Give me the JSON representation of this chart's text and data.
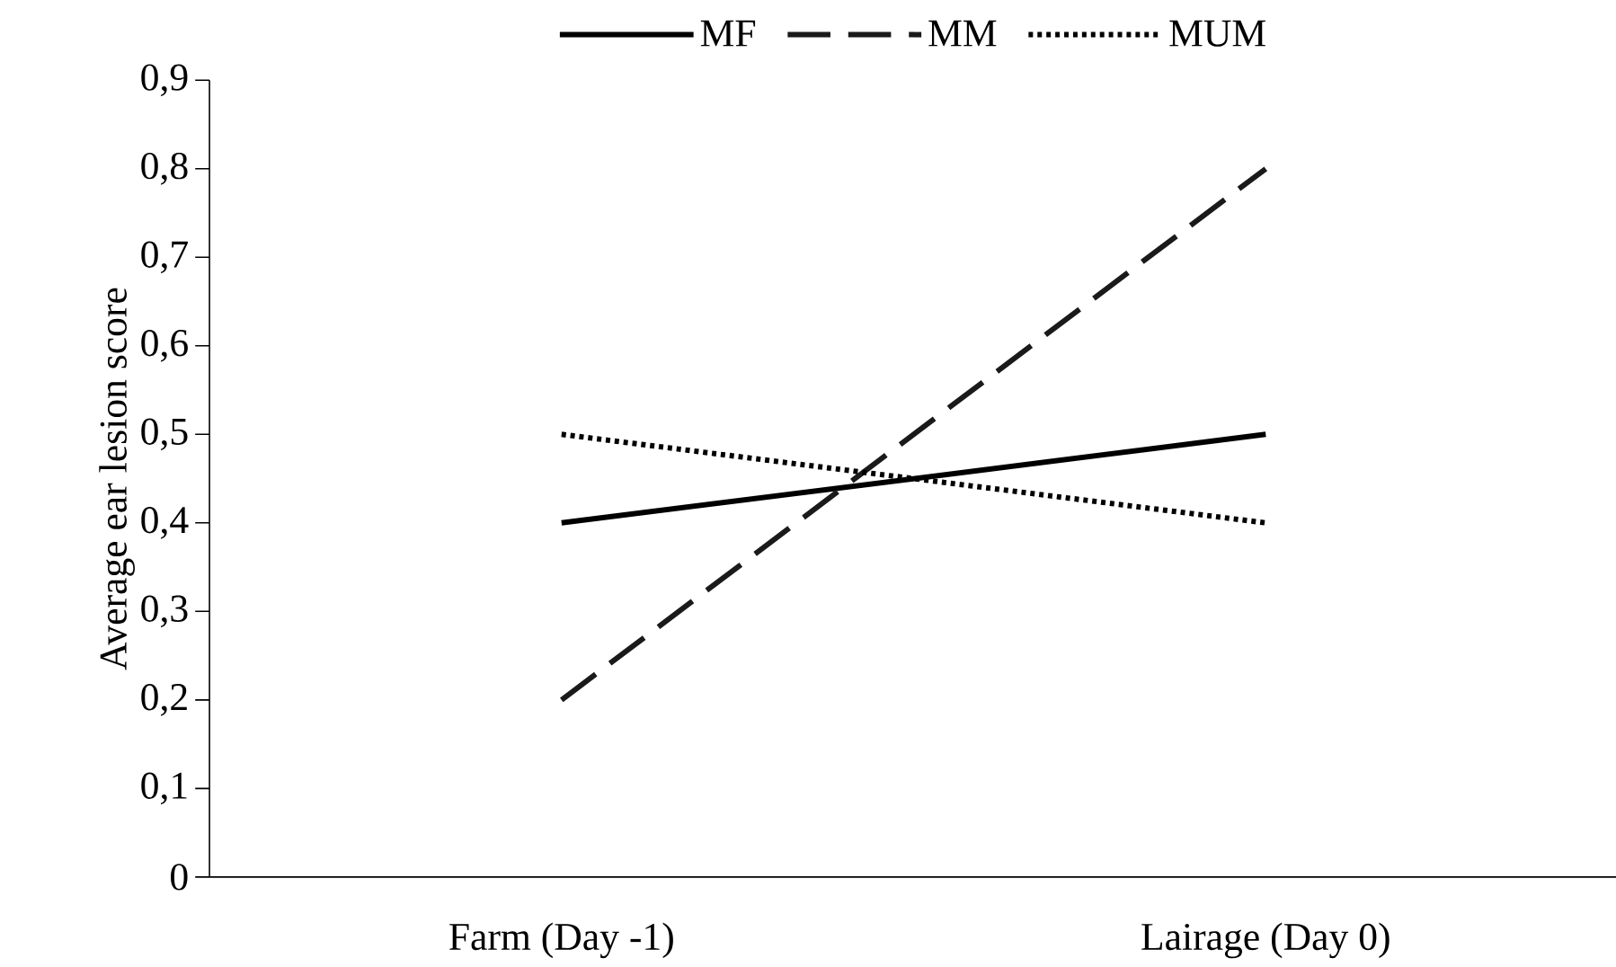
{
  "chart_data": {
    "type": "line",
    "ylabel": "Average ear lesion score",
    "categories": [
      "Farm (Day -1)",
      "Lairage (Day 0)"
    ],
    "series": [
      {
        "name": "MF",
        "color": "#000000",
        "line_style": "solid",
        "values": [
          0.4,
          0.5
        ]
      },
      {
        "name": "MM",
        "color": "#1a1a1a",
        "line_style": "dashed",
        "values": [
          0.2,
          0.8
        ]
      },
      {
        "name": "MUM",
        "color": "#000000",
        "line_style": "dotted",
        "values": [
          0.5,
          0.4
        ]
      }
    ],
    "ylim": [
      0,
      0.9
    ],
    "yticks": [
      {
        "value": 0,
        "label": "0"
      },
      {
        "value": 0.1,
        "label": "0,1"
      },
      {
        "value": 0.2,
        "label": "0,2"
      },
      {
        "value": 0.3,
        "label": "0,3"
      },
      {
        "value": 0.4,
        "label": "0,4"
      },
      {
        "value": 0.5,
        "label": "0,5"
      },
      {
        "value": 0.6,
        "label": "0,6"
      },
      {
        "value": 0.7,
        "label": "0,7"
      },
      {
        "value": 0.8,
        "label": "0,8"
      },
      {
        "value": 0.9,
        "label": "0,9"
      }
    ],
    "legend": "top",
    "grid": false
  }
}
